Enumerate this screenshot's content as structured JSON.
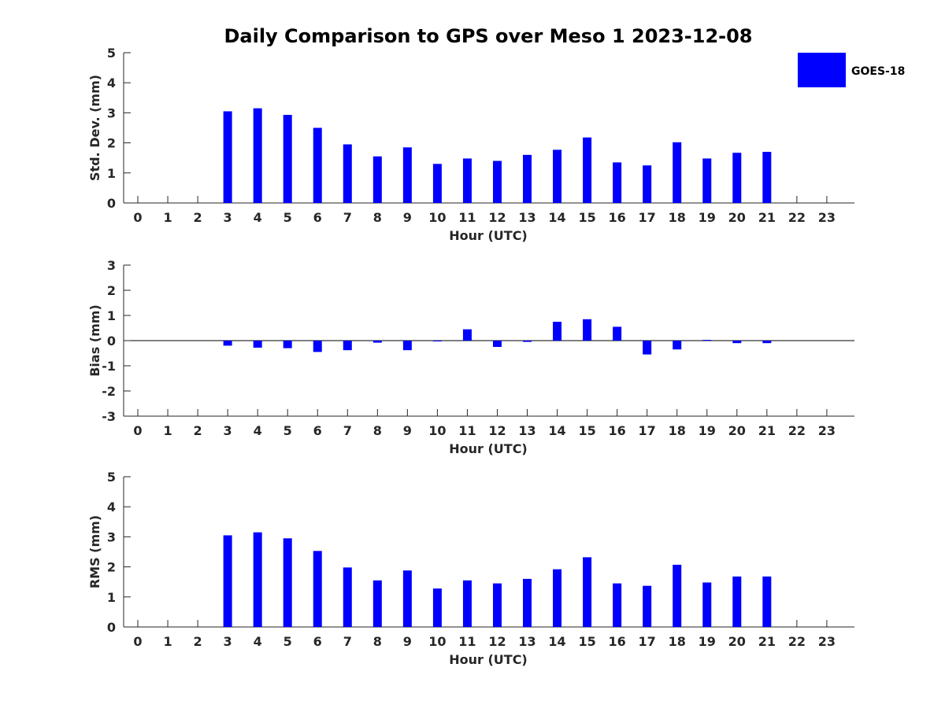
{
  "figure": {
    "title": "Daily Comparison to GPS over Meso 1 2023-12-08",
    "legend": {
      "label": "GOES-18",
      "color": "#0000ff",
      "placement": "top-right"
    }
  },
  "chart_data": [
    {
      "type": "bar",
      "ylabel": "Std. Dev. (mm)",
      "xlabel": "Hour (UTC)",
      "ylim": [
        0,
        5
      ],
      "yticks": [
        "0",
        "1",
        "2",
        "3",
        "4",
        "5"
      ],
      "categories": [
        "0",
        "1",
        "2",
        "3",
        "4",
        "5",
        "6",
        "7",
        "8",
        "9",
        "10",
        "11",
        "12",
        "13",
        "14",
        "15",
        "16",
        "17",
        "18",
        "19",
        "20",
        "21",
        "22",
        "23"
      ],
      "series": [
        {
          "name": "GOES-18",
          "color": "#0000ff",
          "values": [
            null,
            null,
            null,
            3.05,
            3.15,
            2.93,
            2.5,
            1.95,
            1.55,
            1.85,
            1.3,
            1.48,
            1.4,
            1.6,
            1.77,
            2.18,
            1.35,
            1.25,
            2.02,
            1.48,
            1.67,
            1.7,
            null,
            null
          ]
        }
      ]
    },
    {
      "type": "bar",
      "ylabel": "Bias (mm)",
      "xlabel": "Hour (UTC)",
      "ylim": [
        -3,
        3
      ],
      "yticks": [
        "-3",
        "-2",
        "-1",
        "0",
        "1",
        "2",
        "3"
      ],
      "categories": [
        "0",
        "1",
        "2",
        "3",
        "4",
        "5",
        "6",
        "7",
        "8",
        "9",
        "10",
        "11",
        "12",
        "13",
        "14",
        "15",
        "16",
        "17",
        "18",
        "19",
        "20",
        "21",
        "22",
        "23"
      ],
      "series": [
        {
          "name": "GOES-18",
          "color": "#0000ff",
          "values": [
            null,
            null,
            null,
            -0.2,
            -0.28,
            -0.3,
            -0.45,
            -0.38,
            -0.08,
            -0.38,
            0.0,
            0.45,
            -0.25,
            -0.05,
            0.75,
            0.85,
            0.55,
            -0.55,
            -0.35,
            0.03,
            -0.1,
            -0.1,
            null,
            null
          ]
        }
      ]
    },
    {
      "type": "bar",
      "ylabel": "RMS (mm)",
      "xlabel": "Hour (UTC)",
      "ylim": [
        0,
        5
      ],
      "yticks": [
        "0",
        "1",
        "2",
        "3",
        "4",
        "5"
      ],
      "categories": [
        "0",
        "1",
        "2",
        "3",
        "4",
        "5",
        "6",
        "7",
        "8",
        "9",
        "10",
        "11",
        "12",
        "13",
        "14",
        "15",
        "16",
        "17",
        "18",
        "19",
        "20",
        "21",
        "22",
        "23"
      ],
      "series": [
        {
          "name": "GOES-18",
          "color": "#0000ff",
          "values": [
            null,
            null,
            null,
            3.05,
            3.15,
            2.95,
            2.53,
            1.98,
            1.55,
            1.88,
            1.28,
            1.55,
            1.45,
            1.6,
            1.92,
            2.32,
            1.45,
            1.37,
            2.07,
            1.48,
            1.68,
            1.68,
            null,
            null
          ]
        }
      ]
    }
  ]
}
